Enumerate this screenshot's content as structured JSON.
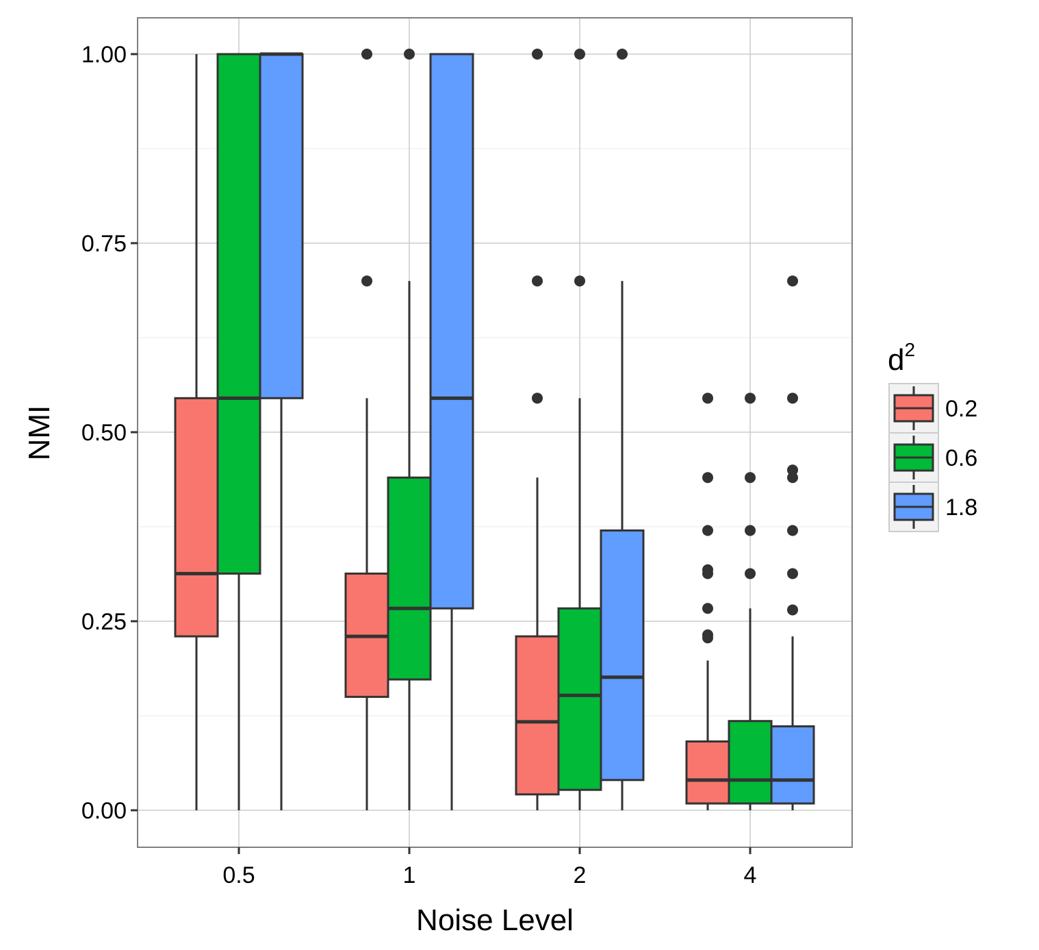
{
  "chart_data": {
    "type": "boxplot",
    "title": "",
    "xlabel": "Noise Level",
    "ylabel": "NMI",
    "ylim": [
      -0.05,
      1.05
    ],
    "yticks": [
      0.0,
      0.25,
      0.5,
      0.75,
      1.0
    ],
    "ytick_labels": [
      "0.00",
      "0.25",
      "0.50",
      "0.75",
      "1.00"
    ],
    "categories": [
      "0.5",
      "1",
      "2",
      "4"
    ],
    "legend": {
      "title": "d",
      "title_superscript": "2",
      "position": "right",
      "entries": [
        "0.2",
        "0.6",
        "1.8"
      ]
    },
    "grid": true,
    "series": [
      {
        "name": "0.2",
        "color": "#F8766D",
        "boxes": [
          {
            "category": "0.5",
            "whisker_low": 0.0,
            "q1": 0.23,
            "median": 0.313,
            "q3": 0.545,
            "whisker_high": 1.0,
            "outliers": []
          },
          {
            "category": "1",
            "whisker_low": 0.0,
            "q1": 0.15,
            "median": 0.23,
            "q3": 0.313,
            "whisker_high": 0.545,
            "outliers": [
              0.7,
              1.0
            ]
          },
          {
            "category": "2",
            "whisker_low": 0.0,
            "q1": 0.021,
            "median": 0.117,
            "q3": 0.23,
            "whisker_high": 0.44,
            "outliers": [
              0.545,
              0.7,
              1.0
            ]
          },
          {
            "category": "4",
            "whisker_low": 0.0,
            "q1": 0.009,
            "median": 0.04,
            "q3": 0.091,
            "whisker_high": 0.198,
            "outliers": [
              0.228,
              0.232,
              0.267,
              0.313,
              0.318,
              0.37,
              0.44,
              0.545
            ]
          }
        ]
      },
      {
        "name": "0.6",
        "color": "#00BA38",
        "boxes": [
          {
            "category": "0.5",
            "whisker_low": 0.0,
            "q1": 0.313,
            "median": 0.545,
            "q3": 1.0,
            "whisker_high": 1.0,
            "outliers": []
          },
          {
            "category": "1",
            "whisker_low": 0.0,
            "q1": 0.173,
            "median": 0.267,
            "q3": 0.44,
            "whisker_high": 0.7,
            "outliers": [
              1.0
            ]
          },
          {
            "category": "2",
            "whisker_low": 0.0,
            "q1": 0.027,
            "median": 0.152,
            "q3": 0.267,
            "whisker_high": 0.545,
            "outliers": [
              0.7,
              1.0
            ]
          },
          {
            "category": "4",
            "whisker_low": 0.0,
            "q1": 0.009,
            "median": 0.04,
            "q3": 0.118,
            "whisker_high": 0.267,
            "outliers": [
              0.313,
              0.37,
              0.44,
              0.545
            ]
          }
        ]
      },
      {
        "name": "1.8",
        "color": "#619CFF",
        "boxes": [
          {
            "category": "0.5",
            "whisker_low": 0.0,
            "q1": 0.545,
            "median": 1.0,
            "q3": 1.0,
            "whisker_high": 1.0,
            "outliers": []
          },
          {
            "category": "1",
            "whisker_low": 0.0,
            "q1": 0.267,
            "median": 0.545,
            "q3": 1.0,
            "whisker_high": 1.0,
            "outliers": []
          },
          {
            "category": "2",
            "whisker_low": 0.0,
            "q1": 0.04,
            "median": 0.176,
            "q3": 0.37,
            "whisker_high": 0.7,
            "outliers": [
              1.0
            ]
          },
          {
            "category": "4",
            "whisker_low": 0.0,
            "q1": 0.009,
            "median": 0.04,
            "q3": 0.111,
            "whisker_high": 0.23,
            "outliers": [
              0.265,
              0.313,
              0.37,
              0.44,
              0.45,
              0.545,
              0.7
            ]
          }
        ]
      }
    ]
  }
}
